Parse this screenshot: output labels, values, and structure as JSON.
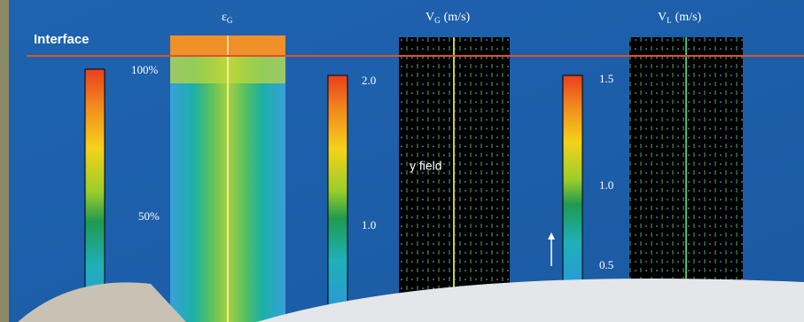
{
  "header": {
    "interface_label": "Interface"
  },
  "panels": [
    {
      "symbol": "ε",
      "subscript": "G"
    },
    {
      "symbol": "V",
      "subscript": "G",
      "unit": "(m/s)"
    },
    {
      "symbol": "V",
      "subscript": "L",
      "unit": "(m/s)"
    }
  ],
  "colorbars": [
    {
      "labels": [
        "100%",
        "50%"
      ]
    },
    {
      "labels": [
        "2.0",
        "1.0"
      ]
    },
    {
      "labels": [
        "1.5",
        "1.0",
        "0.5"
      ]
    }
  ],
  "annotation": "y field"
}
